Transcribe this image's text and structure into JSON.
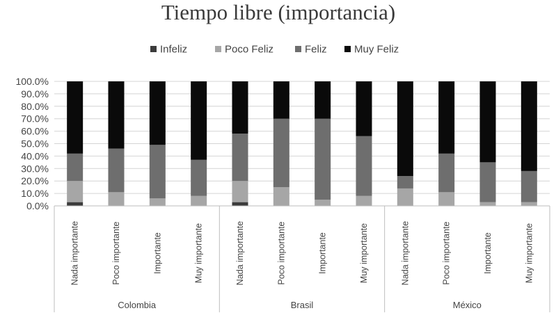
{
  "chart_data": {
    "type": "bar",
    "stacked": true,
    "percent": true,
    "title": "Tiempo libre (importancia)",
    "legend_position": "top",
    "groups": [
      {
        "name": "Colombia",
        "categories": [
          "Nada importante",
          "Poco importante",
          "Importante",
          "Muy importante"
        ]
      },
      {
        "name": "Brasil",
        "categories": [
          "Nada importante",
          "Poco importante",
          "Importante",
          "Muy importante"
        ]
      },
      {
        "name": "México",
        "categories": [
          "Nada importante",
          "Poco importante",
          "Importante",
          "Muy importante"
        ]
      }
    ],
    "series": [
      {
        "name": "Infeliz",
        "color": "#3b3b3b",
        "values": [
          3,
          0,
          0,
          0,
          3,
          0,
          0,
          0,
          0,
          0,
          0,
          0
        ]
      },
      {
        "name": "Poco Feliz",
        "color": "#a6a6a6",
        "values": [
          17,
          11,
          6,
          8,
          17,
          15,
          5,
          8,
          14,
          11,
          3,
          3
        ]
      },
      {
        "name": "Feliz",
        "color": "#6e6e6e",
        "values": [
          22,
          35,
          43,
          29,
          38,
          55,
          65,
          48,
          10,
          31,
          32,
          25
        ]
      },
      {
        "name": "Muy Feliz",
        "color": "#0a0a0a",
        "values": [
          58,
          54,
          51,
          63,
          42,
          30,
          30,
          44,
          76,
          58,
          65,
          72
        ]
      }
    ],
    "yaxis": {
      "ylim": [
        0,
        100
      ],
      "ticks": [
        "0.0%",
        "10.0%",
        "20.0%",
        "30.0%",
        "40.0%",
        "50.0%",
        "60.0%",
        "70.0%",
        "80.0%",
        "90.0%",
        "100.0%"
      ]
    },
    "grid": true
  }
}
